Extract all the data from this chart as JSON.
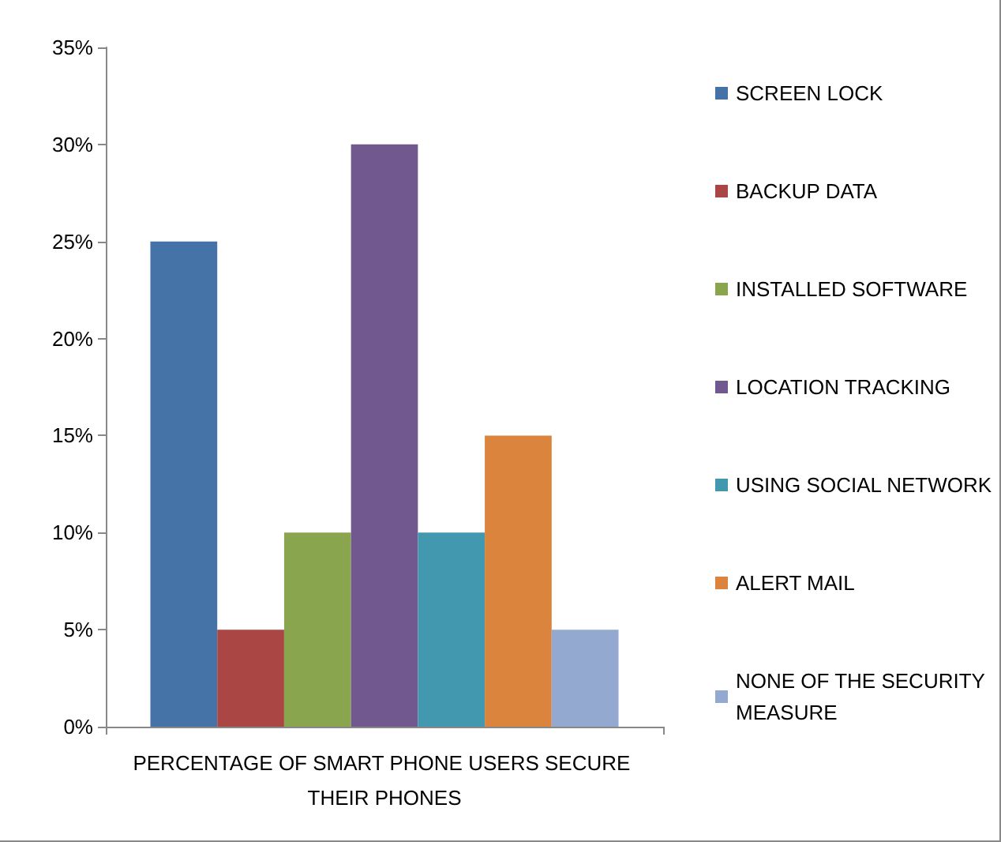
{
  "chart_data": {
    "type": "bar",
    "categories": [
      "PERCENTAGE OF SMART PHONE USERS SECURE THEIR PHONES"
    ],
    "series": [
      {
        "name": "SCREEN LOCK",
        "color": "#4572a7",
        "values": [
          25
        ]
      },
      {
        "name": "BACKUP DATA",
        "color": "#aa4643",
        "values": [
          5
        ]
      },
      {
        "name": "INSTALLED SOFTWARE",
        "color": "#89a54e",
        "values": [
          10
        ]
      },
      {
        "name": "LOCATION TRACKING",
        "color": "#71588f",
        "values": [
          30
        ]
      },
      {
        "name": "USING SOCIAL NETWORK",
        "color": "#4198af",
        "values": [
          10
        ]
      },
      {
        "name": "ALERT MAIL",
        "color": "#db843d",
        "values": [
          15
        ]
      },
      {
        "name": "NONE OF THE SECURITY MEASURE",
        "color": "#93a9cf",
        "values": [
          5
        ]
      }
    ],
    "ylim": [
      0,
      35
    ],
    "yticks": [
      {
        "value": 0,
        "label": "0%"
      },
      {
        "value": 5,
        "label": "5%"
      },
      {
        "value": 10,
        "label": "10%"
      },
      {
        "value": 15,
        "label": "15%"
      },
      {
        "value": 20,
        "label": "20%"
      },
      {
        "value": 25,
        "label": "25%"
      },
      {
        "value": 30,
        "label": "30%"
      },
      {
        "value": 35,
        "label": "35%"
      }
    ],
    "grid": false,
    "legend": "right"
  }
}
